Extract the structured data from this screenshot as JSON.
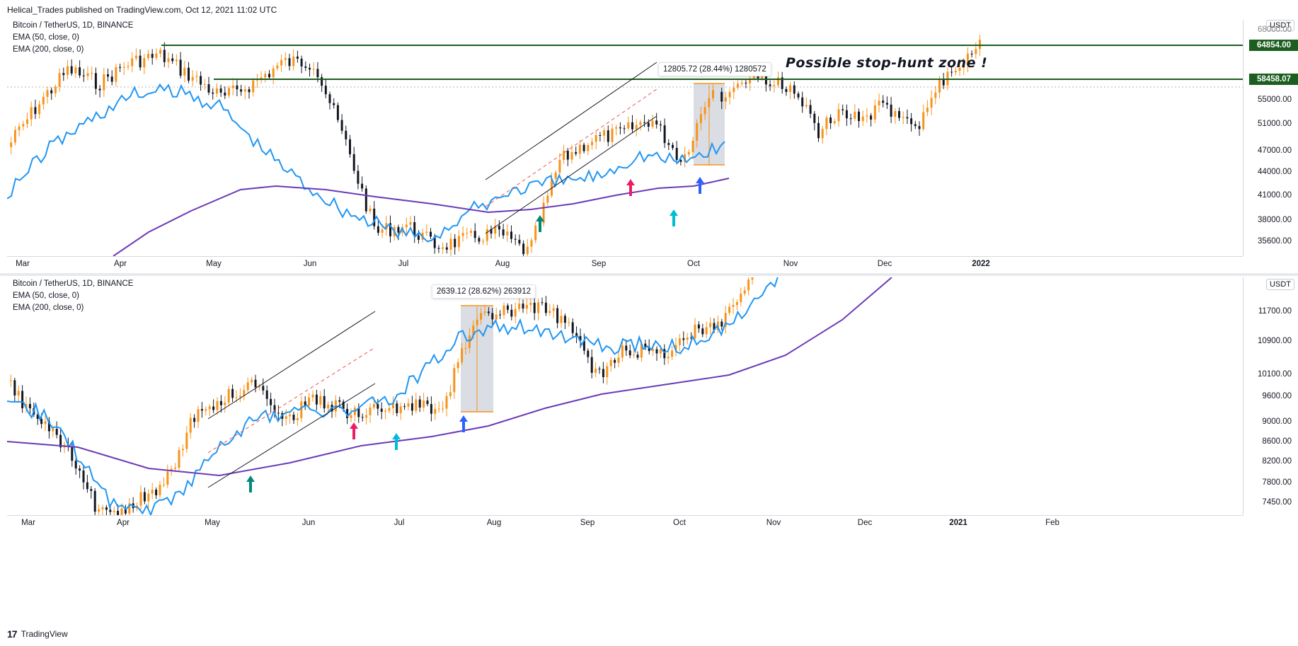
{
  "header": {
    "published": "Helical_Trades published on TradingView.com, Oct 12, 2021 11:02 UTC"
  },
  "top_pane": {
    "legend": [
      "Bitcoin / TetherUS, 1D, BINANCE",
      "EMA (50, close, 0)",
      "EMA (200, close, 0)"
    ],
    "unit": "USDT",
    "y_ticks": [
      "68000.00",
      "55000.00",
      "51000.00",
      "47000.00",
      "44000.00",
      "41000.00",
      "38000.00",
      "35600.00"
    ],
    "x_ticks": [
      "Mar",
      "Apr",
      "May",
      "Jun",
      "Jul",
      "Aug",
      "Sep",
      "Oct",
      "Nov",
      "Dec",
      "2022"
    ],
    "price_tags": [
      "64854.00",
      "58458.07"
    ],
    "measure_label": "12805.72 (28.44%) 1280572",
    "annotation": "Possible stop-hunt zone !"
  },
  "bottom_pane": {
    "legend": [
      "Bitcoin / TetherUS, 1D, BINANCE",
      "EMA (50, close, 0)",
      "EMA (200, close, 0)"
    ],
    "unit": "USDT",
    "y_ticks": [
      "11700.00",
      "10900.00",
      "10100.00",
      "9600.00",
      "9000.00",
      "8600.00",
      "8200.00",
      "7800.00",
      "7450.00"
    ],
    "x_ticks": [
      "Mar",
      "Apr",
      "May",
      "Jun",
      "Jul",
      "Aug",
      "Sep",
      "Oct",
      "Nov",
      "Dec",
      "2021",
      "Feb"
    ],
    "measure_label": "2639.12 (28.62%) 263912"
  },
  "footer": {
    "brand": "TradingView",
    "logo": "17"
  },
  "colors": {
    "up": "#f7931a",
    "down": "#131722",
    "ema50": "#2196f3",
    "ema200": "#6a3ab6",
    "resistance": "#1b5e20",
    "arrow_green": "#00897b",
    "arrow_pink": "#e91e63",
    "arrow_cyan": "#00bcd4",
    "arrow_blue": "#2962ff"
  }
}
